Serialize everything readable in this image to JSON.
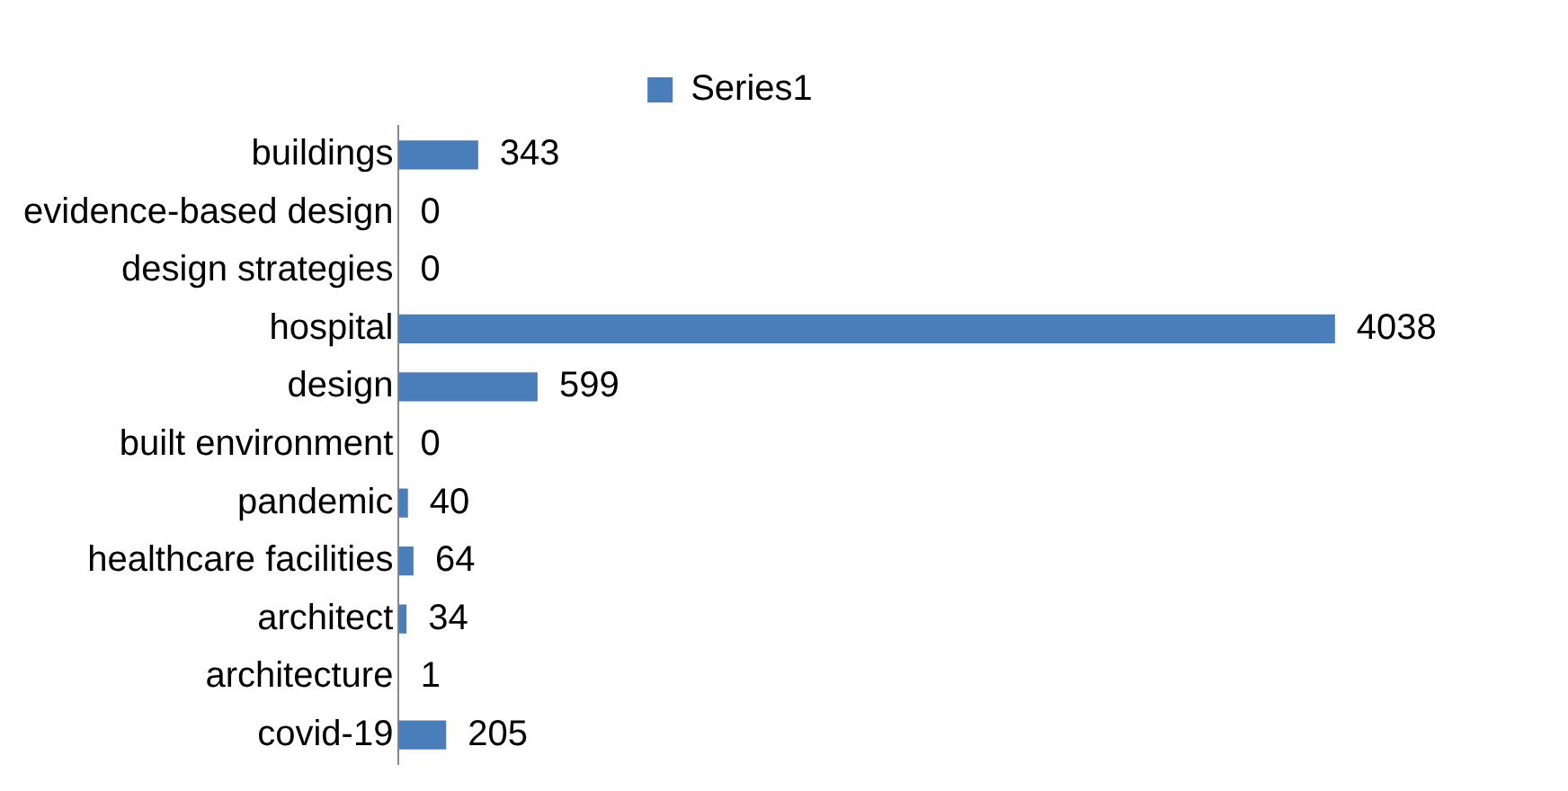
{
  "chart_data": {
    "type": "bar",
    "orientation": "horizontal",
    "categories": [
      "buildings",
      "evidence-based design",
      "design strategies",
      "hospital",
      "design",
      "built environment",
      "pandemic",
      "healthcare facilities",
      "architect",
      "architecture",
      "covid-19"
    ],
    "series": [
      {
        "name": "Series1",
        "color": "#4a7ebb",
        "values": [
          343,
          0,
          0,
          4038,
          599,
          0,
          40,
          64,
          34,
          1,
          205
        ]
      }
    ],
    "data_labels": true,
    "legend": "top",
    "tick_labels": "y"
  }
}
